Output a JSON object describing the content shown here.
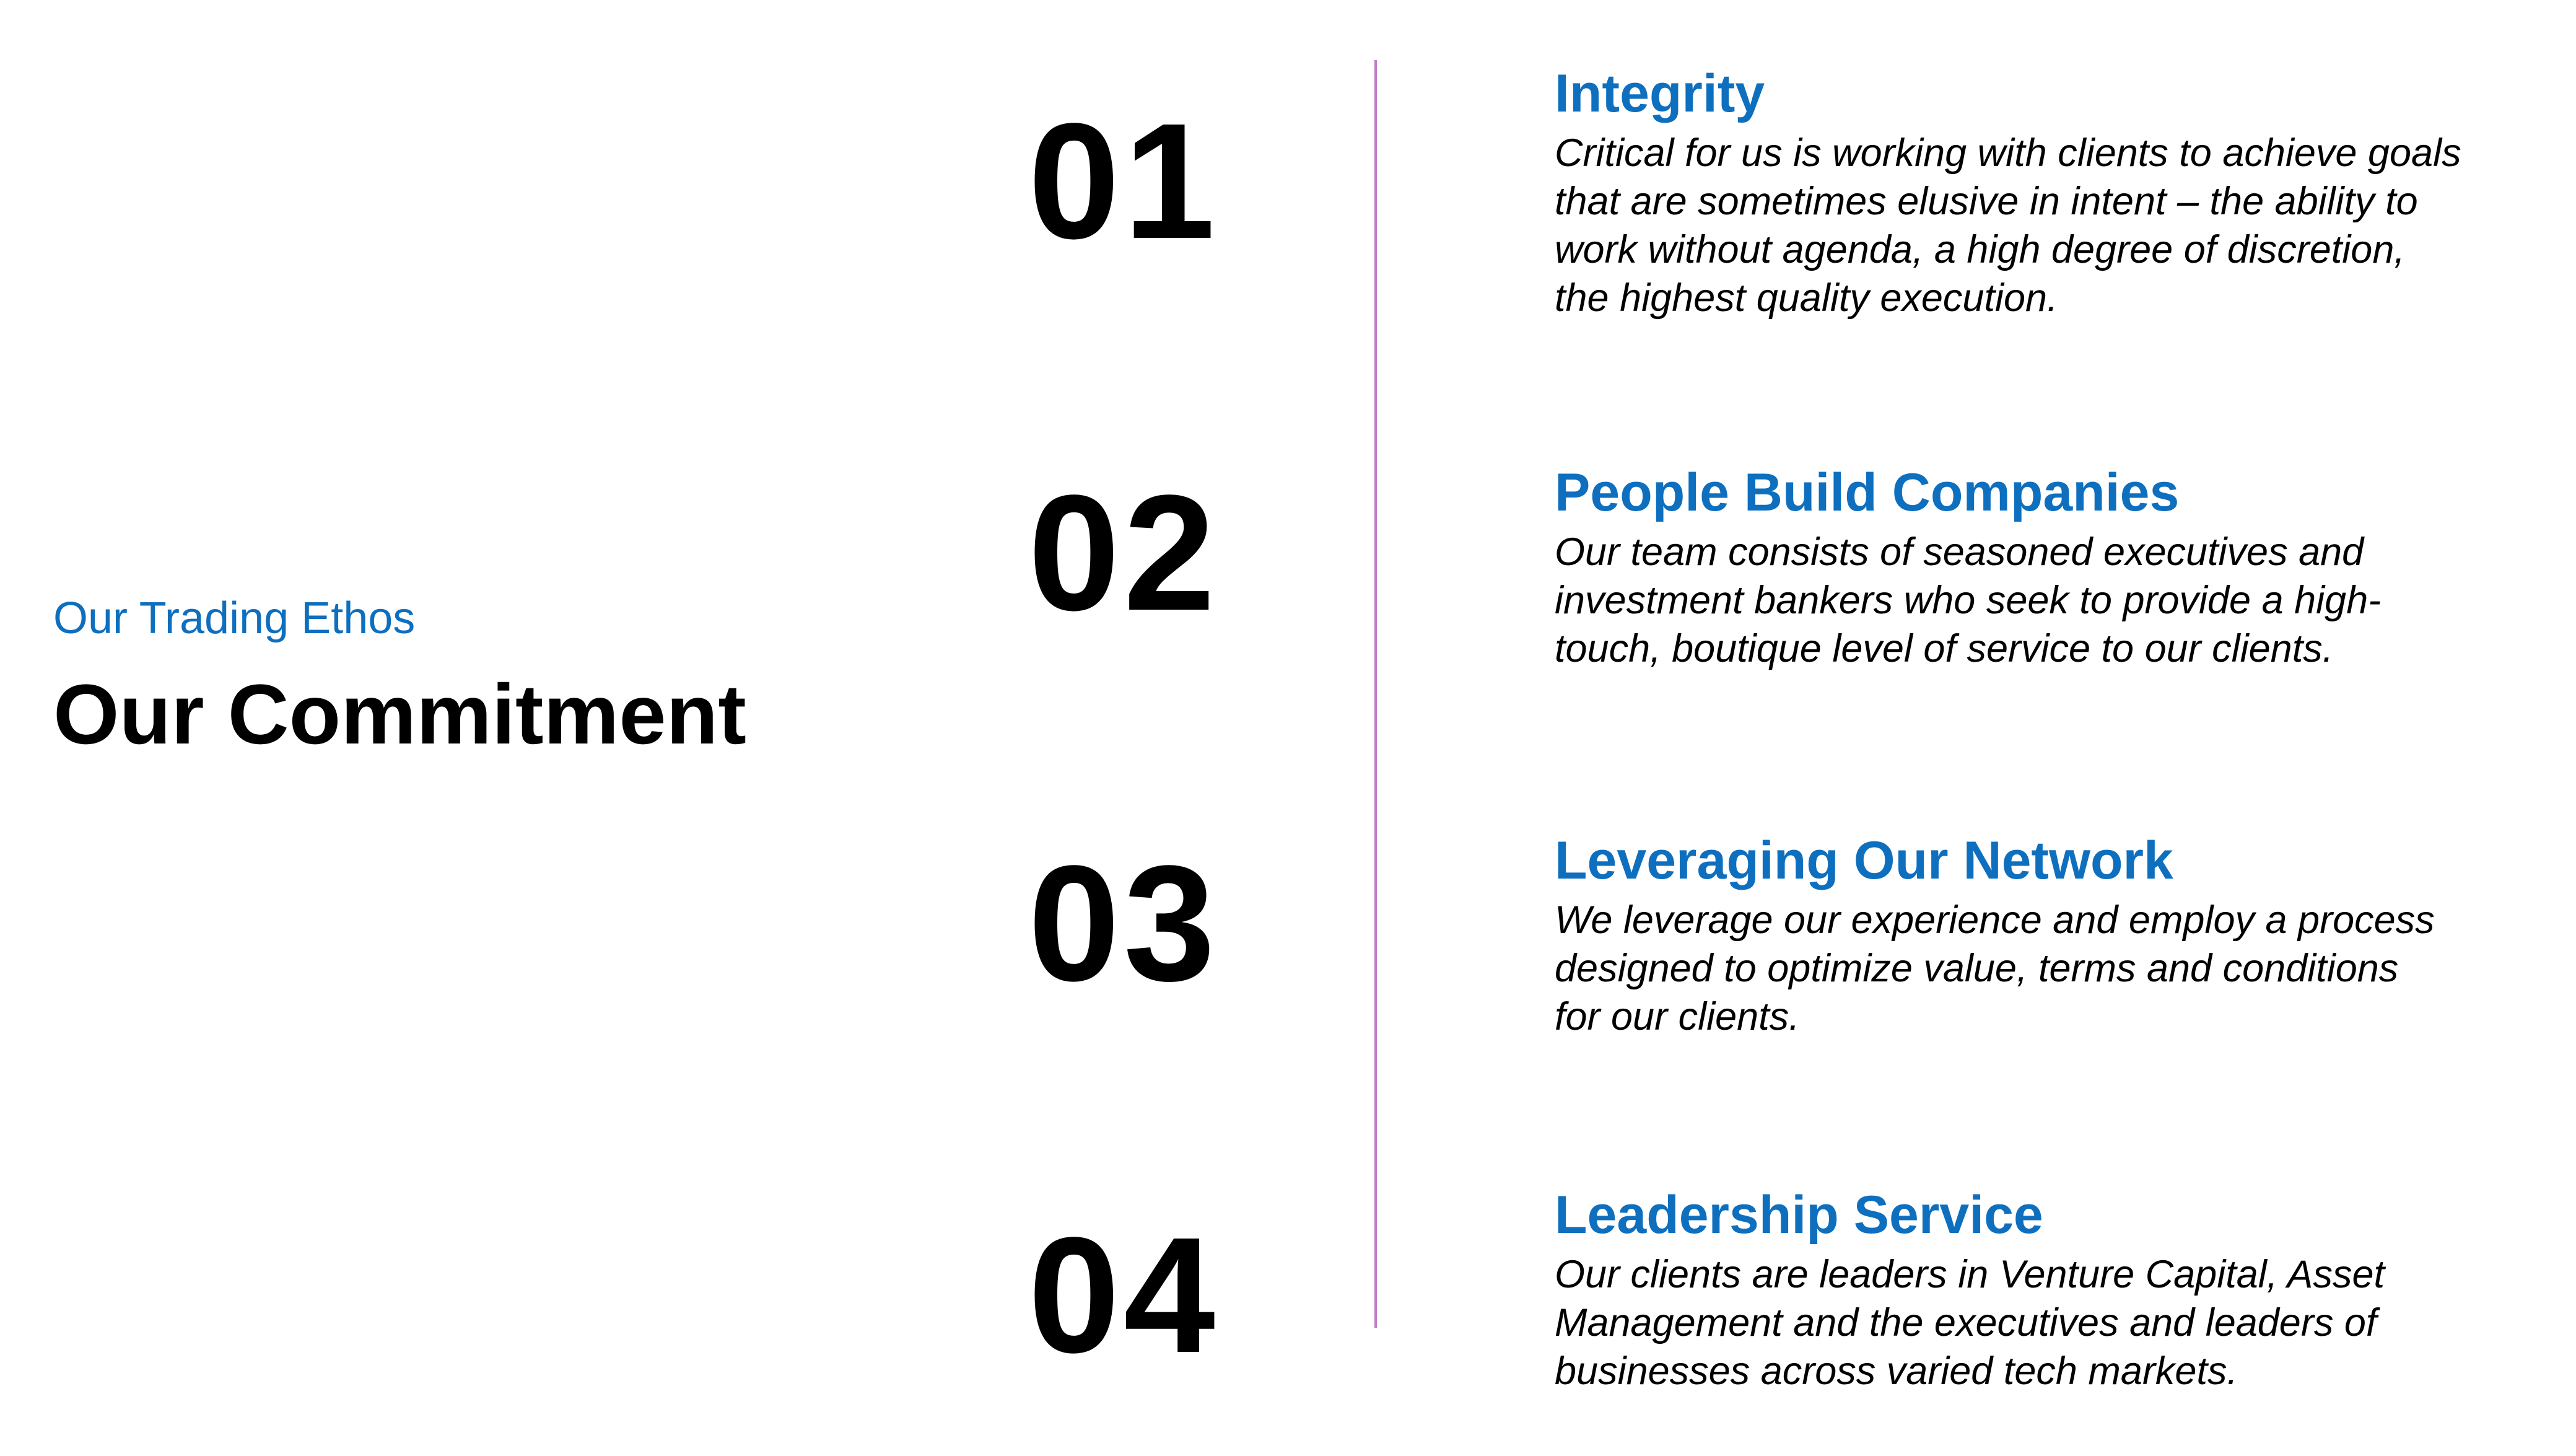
{
  "header": {
    "kicker": "Our Trading Ethos",
    "title": "Our Commitment"
  },
  "items": [
    {
      "number": "01",
      "heading": "Integrity",
      "lines": [
        "Critical for us is working with clients to achieve goals",
        "that are sometimes elusive in intent – the ability to",
        "work without agenda, a high degree of discretion,",
        "the highest quality execution."
      ]
    },
    {
      "number": "02",
      "heading": "People Build Companies",
      "lines": [
        "Our team consists of seasoned executives and",
        "investment bankers who seek to provide a high-",
        "touch, boutique level of service to our clients."
      ]
    },
    {
      "number": "03",
      "heading": "Leveraging Our Network",
      "lines": [
        "We leverage our experience and employ a process",
        "designed to optimize value, terms and conditions",
        "for our clients."
      ]
    },
    {
      "number": "04",
      "heading": "Leadership Service",
      "lines": [
        "Our clients are leaders in Venture Capital, Asset",
        "Management and the executives and leaders of",
        "businesses across varied tech markets."
      ]
    }
  ],
  "colors": {
    "accent": "#0e6fbf",
    "divider": "#c27bc8",
    "text": "#000000"
  }
}
